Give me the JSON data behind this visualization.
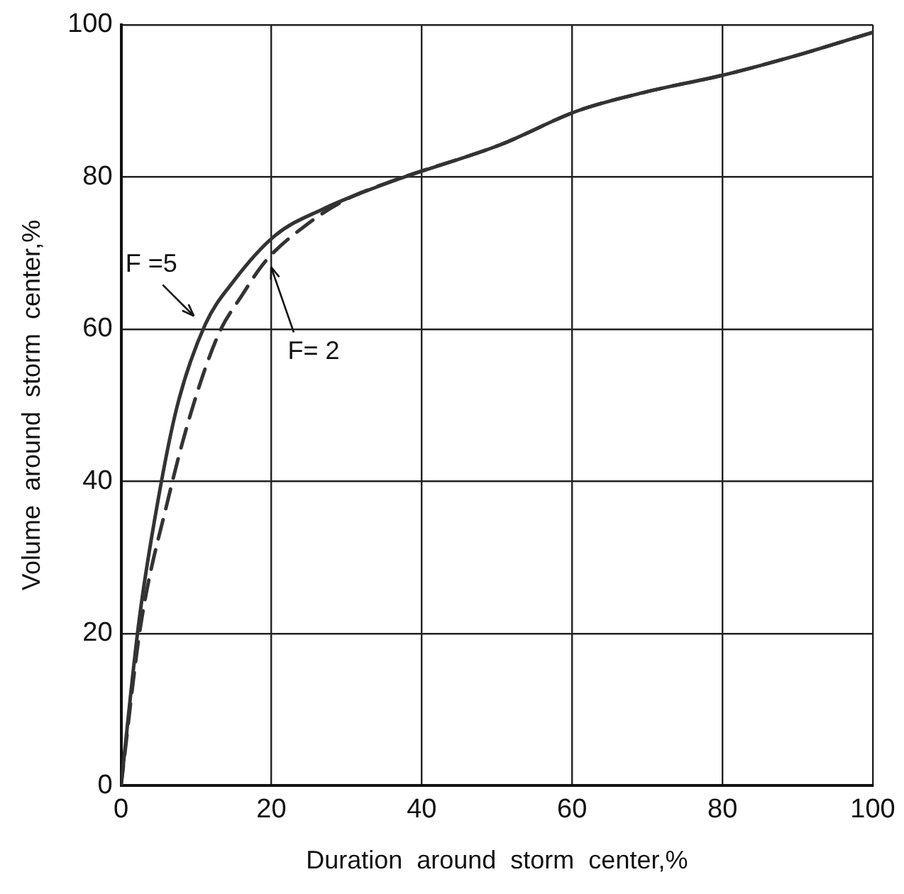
{
  "chart_data": {
    "type": "line",
    "xlabel": "Duration  around  storm  center,%",
    "ylabel": "Volume  around  storm  center,%",
    "xlim": [
      0,
      100
    ],
    "ylim": [
      0,
      100
    ],
    "xticks": [
      0,
      20,
      40,
      60,
      80,
      100
    ],
    "yticks": [
      0,
      20,
      40,
      60,
      80,
      100
    ],
    "grid": true,
    "legend": false,
    "marker": "none",
    "series": [
      {
        "color": "#333333",
        "line_style": "solid",
        "x": [
          0,
          2.4,
          4.9,
          7.5,
          11.2,
          14.9,
          20.5,
          26.7,
          36,
          50.4,
          60.8,
          70,
          80.2,
          90.7,
          100
        ],
        "values": [
          0,
          21.7,
          37.4,
          50,
          60.6,
          66.2,
          72.3,
          75.7,
          79.4,
          84.2,
          88.7,
          91.2,
          93.4,
          96.2,
          99
        ]
      },
      {
        "color": "#333333",
        "line_style": "dashed",
        "x": [
          0,
          2.6,
          6.2,
          9.3,
          13,
          16,
          19.2,
          24.8,
          29.9,
          36.5,
          50.4,
          60.8,
          70,
          80.2,
          90.7,
          100
        ],
        "values": [
          0,
          21,
          37.4,
          49,
          59.4,
          64.3,
          68.9,
          73.8,
          77,
          79.6,
          84.2,
          88.7,
          91.2,
          93.4,
          96.2,
          99
        ]
      }
    ],
    "annotations": [
      {
        "text": "F =5",
        "x": 11.2,
        "y": 60.6
      },
      {
        "text": "F= 2",
        "x": 19.2,
        "y": 68.9
      }
    ]
  }
}
